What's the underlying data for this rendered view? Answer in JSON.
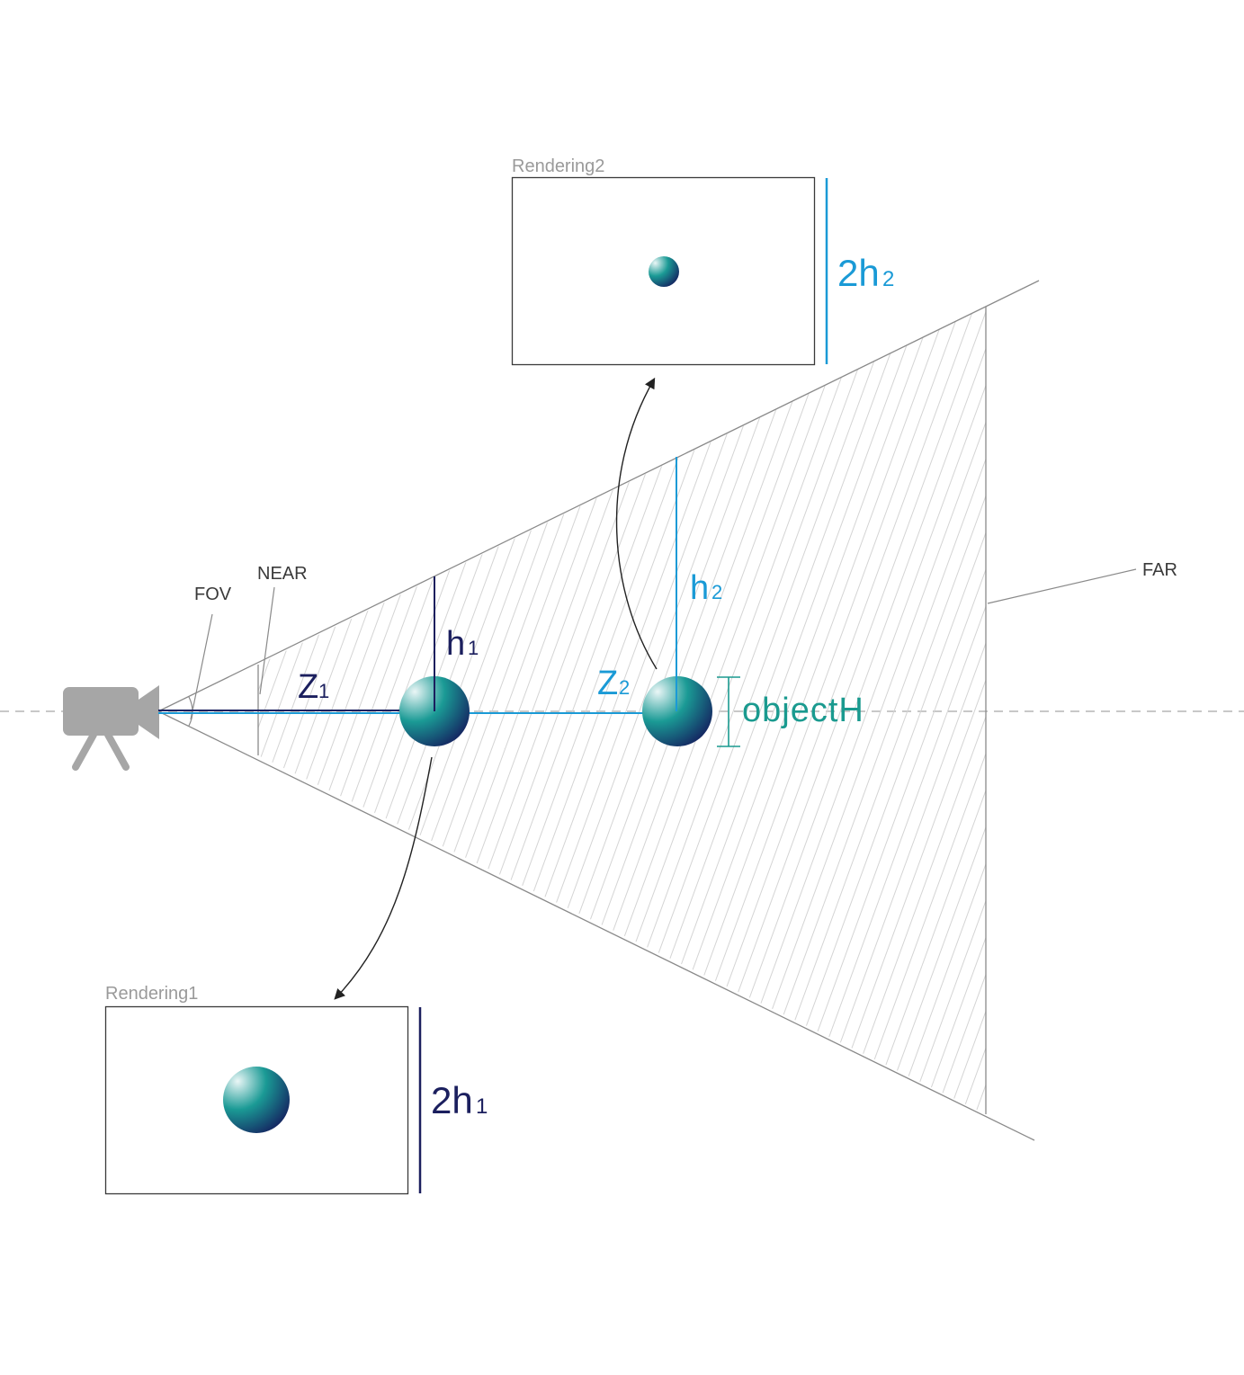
{
  "labels": {
    "fov": "FOV",
    "near": "NEAR",
    "far": "FAR",
    "z1": "Z",
    "z1_sub": "1",
    "h1": "h",
    "h1_sub": "1",
    "z2": "Z",
    "z2_sub": "2",
    "h2": "h",
    "h2_sub": "2",
    "object_h": "objectH",
    "rendering1": "Rendering1",
    "rendering2": "Rendering2",
    "two_h1": "2h",
    "two_h1_sub": "1",
    "two_h2": "2h",
    "two_h2_sub": "2"
  },
  "colors": {
    "navy": "#1b1f5e",
    "blue": "#1a9ad6",
    "teal": "#1a9a8f",
    "gray_line": "#8a8a8a",
    "hatch": "#d4d4d4",
    "camera": "#a6a6a6"
  },
  "icons": {
    "camera": "video-camera-on-tripod-icon",
    "sphere": "sphere-gradient"
  }
}
